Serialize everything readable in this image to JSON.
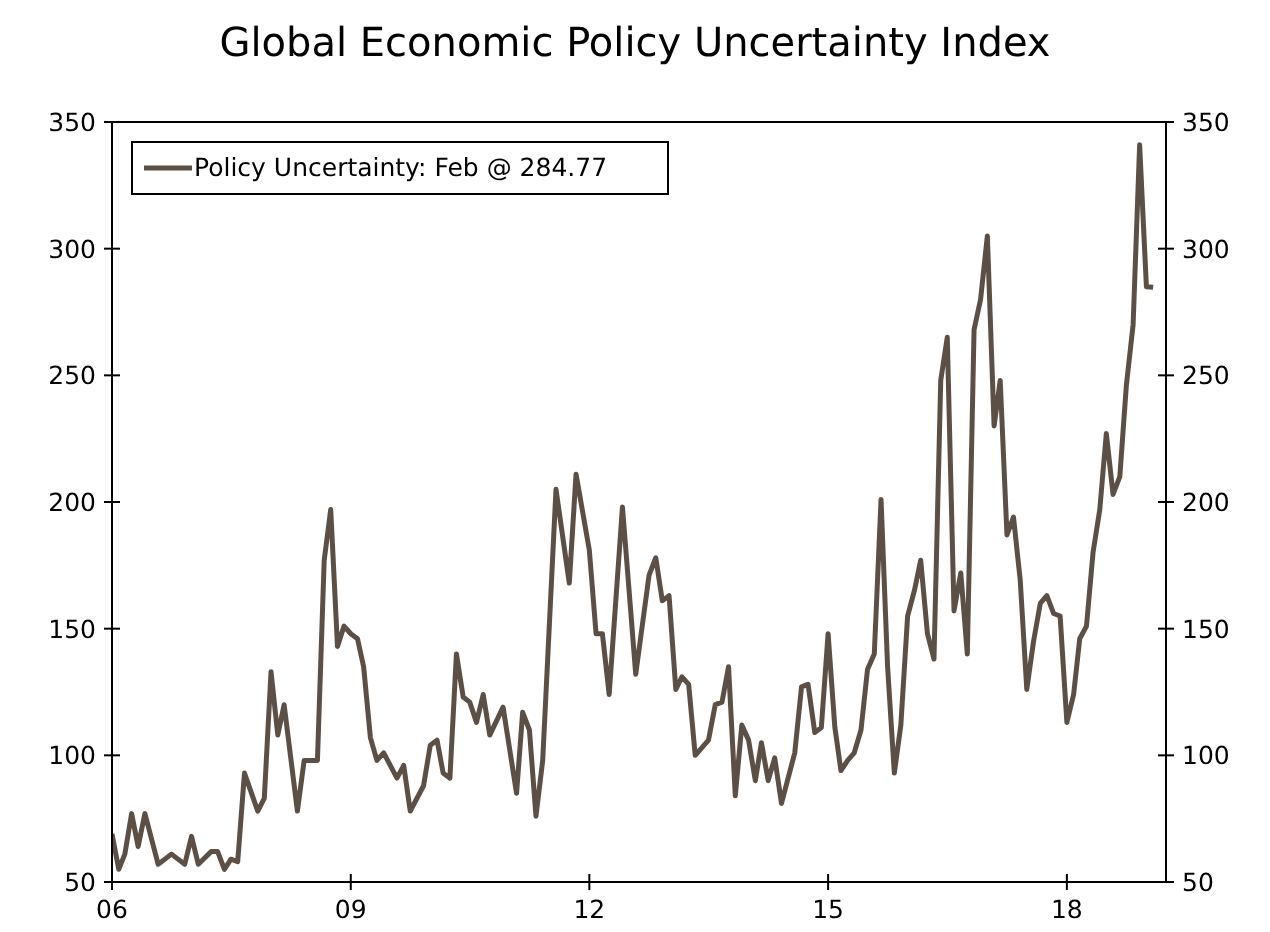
{
  "chart_data": {
    "type": "line",
    "title": "Global Economic Policy Uncertainty Index",
    "series": [
      {
        "name": "Policy Uncertainty: Feb @ 284.77",
        "color": "#5c5046",
        "x": [
          "2006-01",
          "2006-02",
          "2006-03",
          "2006-04",
          "2006-05",
          "2006-06",
          "2006-08",
          "2006-10",
          "2006-12",
          "2007-01",
          "2007-02",
          "2007-04",
          "2007-05",
          "2007-06",
          "2007-07",
          "2007-08",
          "2007-09",
          "2007-11",
          "2007-12",
          "2008-01",
          "2008-02",
          "2008-03",
          "2008-05",
          "2008-06",
          "2008-08",
          "2008-09",
          "2008-10",
          "2008-11",
          "2008-12",
          "2009-01",
          "2009-02",
          "2009-03",
          "2009-04",
          "2009-05",
          "2009-06",
          "2009-08",
          "2009-09",
          "2009-10",
          "2009-12",
          "2010-01",
          "2010-02",
          "2010-03",
          "2010-04",
          "2010-05",
          "2010-06",
          "2010-07",
          "2010-08",
          "2010-09",
          "2010-10",
          "2010-12",
          "2011-02",
          "2011-03",
          "2011-04",
          "2011-05",
          "2011-06",
          "2011-08",
          "2011-10",
          "2011-11",
          "2012-01",
          "2012-02",
          "2012-03",
          "2012-04",
          "2012-06",
          "2012-08",
          "2012-10",
          "2012-11",
          "2012-12",
          "2013-01",
          "2013-02",
          "2013-03",
          "2013-04",
          "2013-05",
          "2013-07",
          "2013-08",
          "2013-09",
          "2013-10",
          "2013-11",
          "2013-12",
          "2014-01",
          "2014-02",
          "2014-03",
          "2014-04",
          "2014-05",
          "2014-06",
          "2014-08",
          "2014-09",
          "2014-10",
          "2014-11",
          "2014-12",
          "2015-01",
          "2015-02",
          "2015-03",
          "2015-04",
          "2015-05",
          "2015-06",
          "2015-07",
          "2015-08",
          "2015-09",
          "2015-10",
          "2015-11",
          "2015-12",
          "2016-01",
          "2016-02",
          "2016-03",
          "2016-04",
          "2016-05",
          "2016-06",
          "2016-07",
          "2016-08",
          "2016-09",
          "2016-10",
          "2016-11",
          "2016-12",
          "2017-01",
          "2017-02",
          "2017-03",
          "2017-04",
          "2017-05",
          "2017-06",
          "2017-07",
          "2017-08",
          "2017-09",
          "2017-10",
          "2017-11",
          "2017-12",
          "2018-01",
          "2018-02",
          "2018-03",
          "2018-04",
          "2018-05",
          "2018-06",
          "2018-07",
          "2018-08",
          "2018-09",
          "2018-10",
          "2018-11",
          "2018-12",
          "2019-01",
          "2019-02"
        ],
        "values": [
          69,
          55,
          61,
          77,
          64,
          77,
          57,
          61,
          57,
          68,
          57,
          62,
          62,
          55,
          59,
          58,
          93,
          78,
          83,
          133,
          108,
          120,
          78,
          98,
          98,
          177,
          197,
          143,
          151,
          148,
          146,
          135,
          107,
          98,
          101,
          91,
          96,
          78,
          88,
          104,
          106,
          93,
          91,
          140,
          123,
          121,
          113,
          124,
          108,
          119,
          85,
          117,
          110,
          76,
          98,
          205,
          168,
          211,
          181,
          148,
          148,
          124,
          198,
          132,
          171,
          178,
          161,
          163,
          126,
          131,
          128,
          100,
          106,
          120,
          121,
          135,
          84,
          112,
          106,
          90,
          105,
          90,
          99,
          81,
          101,
          127,
          128,
          109,
          111,
          148,
          111,
          94,
          98,
          101,
          110,
          134,
          140,
          201,
          135,
          93,
          112,
          155,
          165,
          177,
          148,
          138,
          248,
          265,
          157,
          172,
          140,
          268,
          280,
          305,
          230,
          248,
          187,
          194,
          169,
          126,
          145,
          160,
          163,
          156,
          155,
          113,
          124,
          146,
          151,
          180,
          197,
          227,
          203,
          210,
          246,
          270,
          341,
          285,
          284.77
        ]
      }
    ],
    "xlim": [
      "2006-01",
      "2019-04"
    ],
    "xticks": [
      {
        "value": "2006-01",
        "label": "06"
      },
      {
        "value": "2009-01",
        "label": "09"
      },
      {
        "value": "2012-01",
        "label": "12"
      },
      {
        "value": "2015-01",
        "label": "15"
      },
      {
        "value": "2018-01",
        "label": "18"
      }
    ],
    "ylim": [
      50,
      350
    ],
    "yticks": [
      50,
      100,
      150,
      200,
      250,
      300,
      350
    ],
    "y2lim": [
      50,
      350
    ],
    "y2ticks": [
      50,
      100,
      150,
      200,
      250,
      300,
      350
    ],
    "grid": false,
    "legend": "top left"
  }
}
